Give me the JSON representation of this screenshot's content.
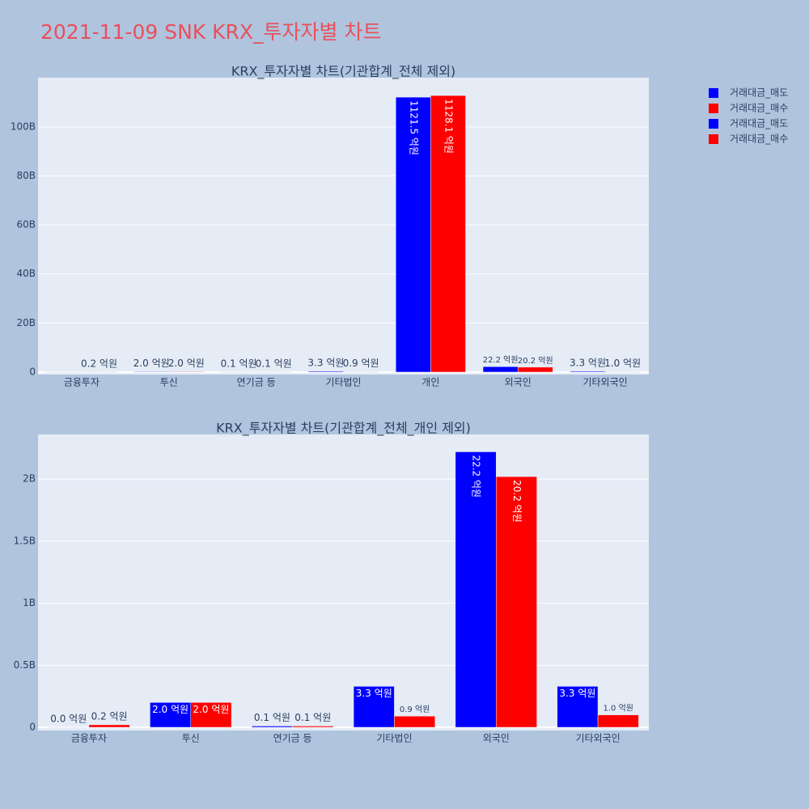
{
  "title": "2021-11-09 SNK KRX_투자자별 차트",
  "chart_data": [
    {
      "type": "bar",
      "title": "KRX_투자자별 차트(기관합계_전체 제외)",
      "categories": [
        "금융투자",
        "투신",
        "연기금 등",
        "기타법인",
        "개인",
        "외국인",
        "기타외국인"
      ],
      "series": [
        {
          "name": "거래대금_매도",
          "color": "#0000ff",
          "values": [
            0.0,
            0.2,
            0.01,
            0.33,
            112.15,
            2.22,
            0.33
          ],
          "value_labels": [
            null,
            "2.0 억원",
            "0.1 억원",
            "3.3 억원",
            "1121.5 억원",
            "22.2 억원",
            "3.3 억원"
          ]
        },
        {
          "name": "거래대금_매수",
          "color": "#ff0000",
          "values": [
            0.02,
            0.2,
            0.01,
            0.09,
            112.81,
            2.02,
            0.1
          ],
          "value_labels": [
            "0.2 억원",
            "2.0 억원",
            "0.1 억원",
            "0.9 억원",
            "1128.1 억원",
            "20.2 억원",
            "1.0 억원"
          ]
        }
      ],
      "ylim": [
        -1,
        120.1
      ],
      "yticks": [
        0,
        {
          "value": 20,
          "label": "20B"
        },
        {
          "value": 40,
          "label": "40B"
        },
        {
          "value": 60,
          "label": "60B"
        },
        {
          "value": 80,
          "label": "80B"
        },
        {
          "value": 100,
          "label": "100B"
        }
      ],
      "grid": true
    },
    {
      "type": "bar",
      "title": "KRX_투자자별 차트(기관합계_전체_개인 제외)",
      "categories": [
        "금융투자",
        "투신",
        "연기금 등",
        "기타법인",
        "외국인",
        "기타외국인"
      ],
      "series": [
        {
          "name": "거래대금_매도",
          "color": "#0000ff",
          "values": [
            0.0,
            0.2,
            0.01,
            0.33,
            2.22,
            0.33
          ],
          "value_labels": [
            "0.0 억원",
            "2.0 억원",
            "0.1 억원",
            "3.3 억원",
            "22.2 억원",
            "3.3 억원"
          ]
        },
        {
          "name": "거래대금_매수",
          "color": "#ff0000",
          "values": [
            0.02,
            0.2,
            0.01,
            0.09,
            2.02,
            0.1
          ],
          "value_labels": [
            "0.2 억원",
            "2.0 억원",
            "0.1 억원",
            "0.9 억원",
            "20.2 억원",
            "1.0 억원"
          ]
        }
      ],
      "ylim": [
        -0.026,
        2.36
      ],
      "yticks": [
        0,
        {
          "value": 0.5,
          "label": "0.5B"
        },
        {
          "value": 1,
          "label": "1B"
        },
        {
          "value": 1.5,
          "label": "1.5B"
        },
        {
          "value": 2,
          "label": "2B"
        }
      ],
      "grid": true
    }
  ]
}
